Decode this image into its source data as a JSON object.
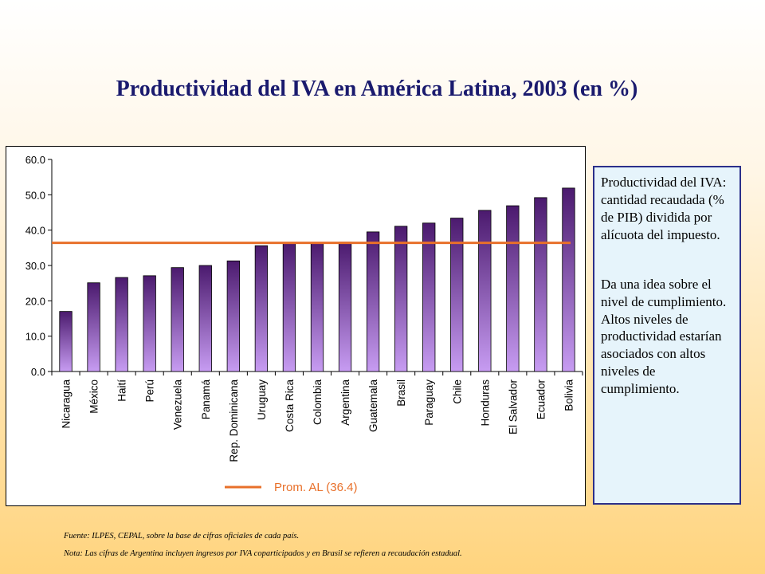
{
  "title": "Productividad del IVA en América Latina, 2003 (en %)",
  "info": {
    "paragraph1": "Productividad del IVA: cantidad recaudada (% de PIB) dividida por alícuota del impuesto.",
    "paragraph2": "Da una idea sobre el nivel de cumplimiento. Altos niveles de productividad estarían asociados con altos niveles de cumplimiento."
  },
  "notes": {
    "source": "Fuente: ILPES, CEPAL, sobre la base de cifras oficiales de cada país.",
    "note": "Nota: Las cifras de Argentina incluyen ingresos por IVA coparticipados y en Brasil se refieren a recaudación estadual."
  },
  "colors": {
    "bar_top": "#4b1a6e",
    "bar_bottom": "#c79cf2",
    "average_line": "#e8702a",
    "legend_text": "#e8702a"
  },
  "chart_data": {
    "type": "bar",
    "title": "Productividad del IVA en América Latina, 2003 (en %)",
    "xlabel": "",
    "ylabel": "",
    "ylim": [
      0,
      60
    ],
    "yticks": [
      0,
      10,
      20,
      30,
      40,
      50,
      60
    ],
    "ytick_labels": [
      "0.0",
      "10.0",
      "20.0",
      "30.0",
      "40.0",
      "50.0",
      "60.0"
    ],
    "grid": false,
    "categories": [
      "Nicaragua",
      "México",
      "Haití",
      "Perú",
      "Venezuela",
      "Panamá",
      "Rep. Dominicana",
      "Uruguay",
      "Costa Rica",
      "Colombia",
      "Argentina",
      "Guatemala",
      "Brasil",
      "Paraguay",
      "Chile",
      "Honduras",
      "El Salvador",
      "Ecuador",
      "Bolivia"
    ],
    "values": [
      17.0,
      25.1,
      26.6,
      27.1,
      29.4,
      30.0,
      31.3,
      35.6,
      36.4,
      36.5,
      36.6,
      39.5,
      41.1,
      42.0,
      43.4,
      45.6,
      46.9,
      49.2,
      51.9
    ],
    "average": {
      "label": "Prom. AL (36.4)",
      "value": 36.4
    },
    "legend": "bottom"
  }
}
